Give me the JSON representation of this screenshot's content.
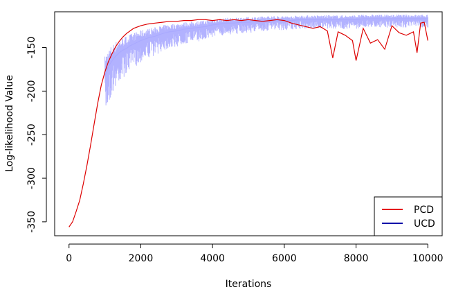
{
  "chart_data": {
    "type": "line",
    "xlabel": "Iterations",
    "ylabel": "Log-likelihood Value",
    "xlim": [
      -400,
      10400
    ],
    "ylim": [
      -366,
      -109
    ],
    "xticks": [
      0,
      2000,
      4000,
      6000,
      8000,
      10000
    ],
    "yticks": [
      -350,
      -300,
      -250,
      -200,
      -150
    ],
    "xtick_labels": [
      "0",
      "2000",
      "4000",
      "6000",
      "8000",
      "10000"
    ],
    "ytick_labels": [
      "-350",
      "-300",
      "-250",
      "-200",
      "-150"
    ],
    "legend": {
      "position": "bottom-right",
      "entries": [
        {
          "label": "PCD",
          "color": "#e41a1c"
        },
        {
          "label": "UCD",
          "color": "#0a0aa8"
        }
      ]
    },
    "series": [
      {
        "name": "PCD",
        "color": "#dd0000",
        "x": [
          0,
          100,
          200,
          300,
          400,
          500,
          600,
          700,
          800,
          900,
          1000,
          1100,
          1200,
          1300,
          1400,
          1500,
          1600,
          1700,
          1800,
          2000,
          2200,
          2400,
          2600,
          2800,
          3000,
          3200,
          3400,
          3600,
          3800,
          4000,
          4200,
          4400,
          4600,
          4800,
          5000,
          5200,
          5400,
          5600,
          5800,
          6000,
          6200,
          6400,
          6600,
          6800,
          7000,
          7200,
          7350,
          7500,
          7700,
          7900,
          8000,
          8200,
          8400,
          8600,
          8800,
          9000,
          9200,
          9400,
          9600,
          9700,
          9800,
          9900,
          10000
        ],
        "y": [
          -356,
          -350,
          -338,
          -325,
          -306,
          -285,
          -262,
          -238,
          -214,
          -193,
          -178,
          -166,
          -157,
          -149,
          -143,
          -138,
          -134,
          -131,
          -128,
          -125,
          -123,
          -122,
          -121,
          -120,
          -120,
          -119,
          -119,
          -118,
          -118,
          -119,
          -118,
          -119,
          -118,
          -119,
          -118,
          -119,
          -120,
          -119,
          -118,
          -119,
          -122,
          -124,
          -126,
          -128,
          -126,
          -131,
          -162,
          -132,
          -136,
          -142,
          -165,
          -128,
          -145,
          -141,
          -152,
          -125,
          -133,
          -136,
          -132,
          -156,
          -122,
          -121,
          -142
        ]
      },
      {
        "name": "UCD",
        "color": "#aaaaff",
        "x": [
          1000,
          1100,
          1200,
          1300,
          1400,
          1500,
          1600,
          1700,
          1800,
          2000,
          2200,
          2400,
          2600,
          2800,
          3000,
          3200,
          3400,
          3600,
          3800,
          4000,
          4200,
          4400,
          4600,
          4800,
          5000,
          5200,
          5400,
          5600,
          5800,
          6000,
          6200,
          6400,
          6600,
          6800,
          7000,
          7200,
          7400,
          7600,
          7800,
          8000,
          8200,
          8400,
          8600,
          8800,
          9000,
          9200,
          9400,
          9600,
          9800,
          10000
        ],
        "y": [
          -182,
          -172,
          -165,
          -160,
          -156,
          -153,
          -151,
          -148,
          -146,
          -142,
          -139,
          -137,
          -134,
          -132,
          -131,
          -129,
          -128,
          -127,
          -126,
          -124,
          -123,
          -122,
          -122,
          -121,
          -121,
          -120,
          -120,
          -119,
          -119,
          -119,
          -119,
          -118,
          -118,
          -118,
          -118,
          -118,
          -118,
          -118,
          -118,
          -118,
          -117,
          -117,
          -117,
          -117,
          -117,
          -117,
          -117,
          -117,
          -117,
          -117
        ]
      }
    ]
  }
}
